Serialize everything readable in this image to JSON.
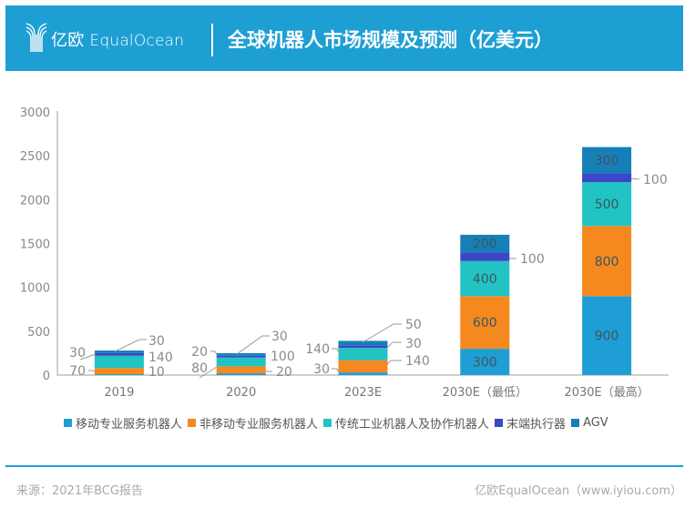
{
  "header": {
    "brand_cn": "亿欧",
    "brand_en": "EqualOcean",
    "title": "全球机器人市场规模及预测（亿美元）",
    "background_color": "#1E9FD4"
  },
  "chart_data": {
    "type": "bar",
    "stacked": true,
    "title": "全球机器人市场规模及预测（亿美元）",
    "xlabel": "",
    "ylabel": "",
    "ylim": [
      0,
      3000
    ],
    "y_ticks": [
      0,
      500,
      1000,
      1500,
      2000,
      2500,
      3000
    ],
    "grid": false,
    "legend": "bottom",
    "categories": [
      "2019",
      "2020",
      "2023E",
      "2030E（最低）",
      "2030E（最高）"
    ],
    "series": [
      {
        "name": "移动专业服务机器人",
        "color": "#1F9ED5",
        "values": [
          10,
          20,
          30,
          300,
          900
        ]
      },
      {
        "name": "非移动专业服务机器人",
        "color": "#F5891F",
        "values": [
          70,
          80,
          140,
          600,
          800
        ]
      },
      {
        "name": "传统工业机器人及协作机器人",
        "color": "#22C3C3",
        "values": [
          140,
          100,
          140,
          400,
          500
        ]
      },
      {
        "name": "末端执行器",
        "color": "#3B47C6",
        "values": [
          30,
          20,
          30,
          100,
          100
        ]
      },
      {
        "name": "AGV",
        "color": "#1580B8",
        "values": [
          30,
          30,
          50,
          200,
          300
        ]
      }
    ]
  },
  "footer": {
    "source": "来源：2021年BCG报告",
    "credit": "亿欧EqualOcean（www.iyiou.com）"
  }
}
